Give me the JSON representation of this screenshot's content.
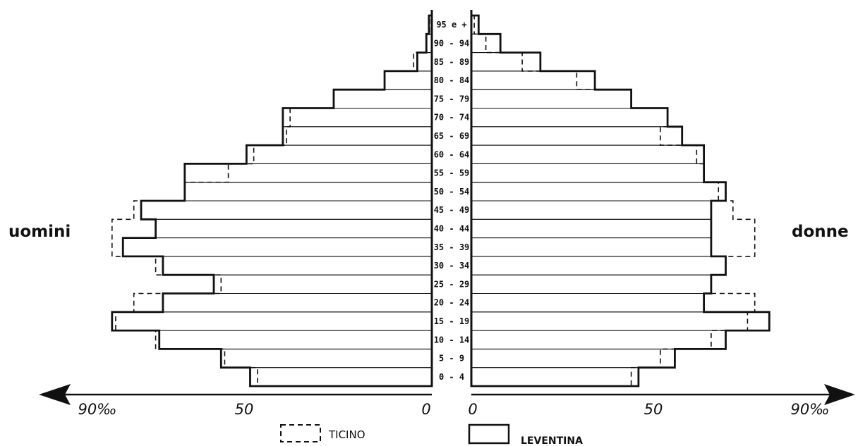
{
  "chart_data": {
    "type": "population-pyramid",
    "left_label": "uomini",
    "right_label": "donne",
    "unit": "‰",
    "age_groups": [
      "0 - 4",
      "5 - 9",
      "10 - 14",
      "15 - 19",
      "20 - 24",
      "25 - 29",
      "30 - 34",
      "35 - 39",
      "40 - 44",
      "45 - 49",
      "50 - 54",
      "55 - 59",
      "60 - 64",
      "65 - 69",
      "70 - 74",
      "75 - 79",
      "80 - 84",
      "85 - 89",
      "90 - 94",
      "95 e +"
    ],
    "x_ticks_left": [
      "90‰",
      "50",
      "0"
    ],
    "x_ticks_right": [
      "0",
      "50",
      "90‰"
    ],
    "xlim": [
      0,
      90
    ],
    "series": [
      {
        "name": "LEVENTINA",
        "style": "solid",
        "men": [
          50,
          58,
          75,
          88,
          74,
          60,
          74,
          85,
          76,
          80,
          68,
          68,
          51,
          41,
          41,
          27,
          13,
          4,
          1.5,
          0.8
        ],
        "women": [
          46,
          56,
          70,
          82,
          64,
          66,
          70,
          66,
          66,
          66,
          70,
          64,
          64,
          58,
          54,
          44,
          34,
          19,
          8,
          2
        ]
      },
      {
        "name": "TICINO",
        "style": "dashed",
        "men": [
          48,
          57,
          76,
          87,
          82,
          58,
          76,
          88,
          88,
          82,
          68,
          56,
          49,
          40,
          39,
          27,
          13,
          5,
          1.5,
          0.6
        ],
        "women": [
          44,
          52,
          66,
          76,
          78,
          66,
          70,
          78,
          78,
          72,
          68,
          64,
          62,
          52,
          54,
          44,
          29,
          14,
          4,
          0.8
        ]
      }
    ],
    "legend": [
      {
        "label": "TICINO",
        "style": "dashed"
      },
      {
        "label": "LEVENTINA",
        "style": "solid"
      }
    ],
    "legend_position": "bottom-center",
    "grid": false
  }
}
